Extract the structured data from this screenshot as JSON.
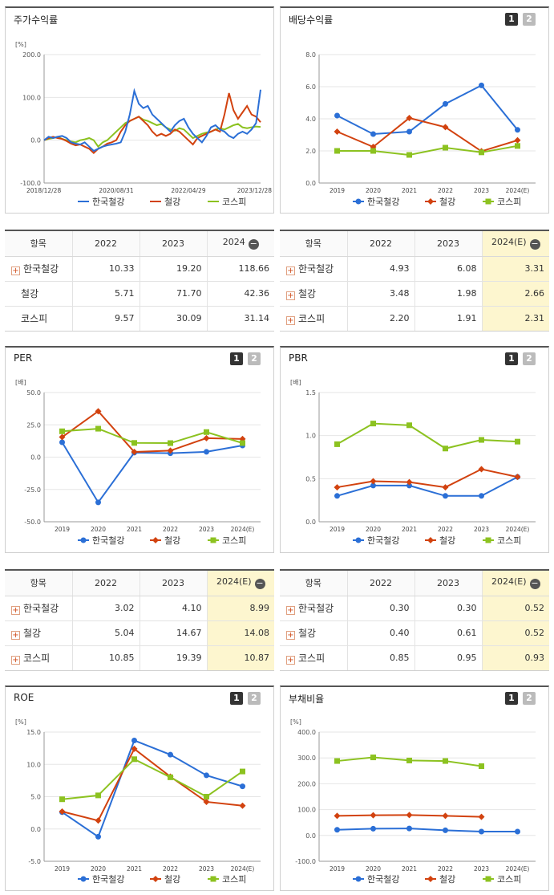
{
  "series_names": [
    "한국철강",
    "철강",
    "코스피"
  ],
  "series_colors": [
    "#2b6fd6",
    "#d2420f",
    "#8cc220"
  ],
  "panels": {
    "stock": {
      "title": "주가수익률",
      "unit": "[%]",
      "chart_data": {
        "type": "line",
        "ylim": [
          -100,
          200
        ],
        "yticks": [
          "200.0",
          "100.0",
          "0.0",
          "-100.0"
        ],
        "xtick_labels": [
          "2018/12/28",
          "2020/08/31",
          "2022/04/29",
          "2023/12/28"
        ],
        "series": [
          {
            "name": "한국철강",
            "values": [
              0,
              8,
              5,
              8,
              10,
              5,
              -5,
              -8,
              -10,
              -5,
              -15,
              -25,
              -20,
              -15,
              -12,
              -10,
              -8,
              -5,
              20,
              60,
              115,
              85,
              75,
              80,
              60,
              50,
              40,
              30,
              20,
              35,
              45,
              50,
              30,
              15,
              5,
              -5,
              10,
              30,
              35,
              25,
              20,
              10,
              5,
              15,
              20,
              15,
              25,
              40,
              118
            ]
          },
          {
            "name": "철강",
            "values": [
              0,
              5,
              8,
              5,
              3,
              -2,
              -8,
              -12,
              -10,
              -15,
              -20,
              -30,
              -20,
              -15,
              -8,
              -5,
              0,
              20,
              35,
              45,
              50,
              55,
              45,
              35,
              20,
              10,
              15,
              10,
              15,
              25,
              20,
              10,
              0,
              -10,
              5,
              10,
              15,
              20,
              25,
              20,
              60,
              110,
              70,
              50,
              65,
              80,
              60,
              55,
              42
            ]
          },
          {
            "name": "코스피",
            "values": [
              0,
              3,
              5,
              8,
              3,
              0,
              -3,
              -5,
              0,
              2,
              5,
              0,
              -15,
              -5,
              0,
              10,
              20,
              30,
              40,
              45,
              50,
              55,
              48,
              45,
              40,
              35,
              38,
              30,
              25,
              22,
              28,
              25,
              15,
              5,
              10,
              15,
              18,
              20,
              25,
              28,
              25,
              30,
              35,
              38,
              30,
              28,
              30,
              32,
              31
            ]
          }
        ]
      }
    },
    "dividend": {
      "title": "배당수익률",
      "chart_data": {
        "type": "line",
        "ylim": [
          0,
          8
        ],
        "yticks": [
          "8.0",
          "6.0",
          "4.0",
          "2.0",
          "0.0"
        ],
        "categories": [
          "2019",
          "2020",
          "2021",
          "2022",
          "2023",
          "2024(E)"
        ],
        "series": [
          {
            "name": "한국철강",
            "values": [
              4.2,
              3.05,
              3.2,
              4.93,
              6.08,
              3.31
            ]
          },
          {
            "name": "철강",
            "values": [
              3.2,
              2.25,
              4.05,
              3.48,
              1.98,
              2.66
            ]
          },
          {
            "name": "코스피",
            "values": [
              2.0,
              2.0,
              1.75,
              2.2,
              1.91,
              2.31
            ]
          }
        ]
      }
    },
    "per": {
      "title": "PER",
      "unit": "[배]",
      "chart_data": {
        "type": "line",
        "ylim": [
          -50,
          50
        ],
        "yticks": [
          "50.0",
          "25.0",
          "0.0",
          "-25.0",
          "-50.0"
        ],
        "categories": [
          "2019",
          "2020",
          "2021",
          "2022",
          "2023",
          "2024(E)"
        ],
        "series": [
          {
            "name": "한국철강",
            "values": [
              11.5,
              -35.0,
              3.5,
              3.02,
              4.1,
              8.99
            ]
          },
          {
            "name": "철강",
            "values": [
              15.5,
              35.5,
              4.0,
              5.04,
              14.67,
              14.08
            ]
          },
          {
            "name": "코스피",
            "values": [
              20.0,
              22.0,
              11.0,
              10.85,
              19.39,
              10.87
            ]
          }
        ]
      }
    },
    "pbr": {
      "title": "PBR",
      "unit": "[배]",
      "chart_data": {
        "type": "line",
        "ylim": [
          0,
          1.5
        ],
        "yticks": [
          "1.5",
          "1.0",
          "0.5",
          "0.0"
        ],
        "categories": [
          "2019",
          "2020",
          "2021",
          "2022",
          "2023",
          "2024(E)"
        ],
        "series": [
          {
            "name": "한국철강",
            "values": [
              0.3,
              0.42,
              0.42,
              0.3,
              0.3,
              0.52
            ]
          },
          {
            "name": "철강",
            "values": [
              0.4,
              0.47,
              0.46,
              0.4,
              0.61,
              0.52
            ]
          },
          {
            "name": "코스피",
            "values": [
              0.9,
              1.14,
              1.12,
              0.85,
              0.95,
              0.93
            ]
          }
        ]
      }
    },
    "roe": {
      "title": "ROE",
      "unit": "[%]",
      "chart_data": {
        "type": "line",
        "ylim": [
          -5,
          15
        ],
        "yticks": [
          "15.0",
          "10.0",
          "5.0",
          "0.0",
          "-5.0"
        ],
        "categories": [
          "2019",
          "2020",
          "2021",
          "2022",
          "2023",
          "2024(E)"
        ],
        "series": [
          {
            "name": "한국철강",
            "values": [
              2.6,
              -1.2,
              13.7,
              11.5,
              8.3,
              6.6
            ]
          },
          {
            "name": "철강",
            "values": [
              2.7,
              1.3,
              12.4,
              8.1,
              4.2,
              3.6
            ]
          },
          {
            "name": "코스피",
            "values": [
              4.6,
              5.2,
              10.8,
              8.0,
              5.0,
              8.9
            ]
          }
        ]
      }
    },
    "debt": {
      "title": "부채비율",
      "unit": "[%]",
      "chart_data": {
        "type": "line",
        "ylim": [
          -100,
          400
        ],
        "yticks": [
          "400.0",
          "300.0",
          "200.0",
          "100.0",
          "0.0",
          "-100.0"
        ],
        "categories": [
          "2019",
          "2020",
          "2021",
          "2022",
          "2023",
          "2024(E)"
        ],
        "series": [
          {
            "name": "한국철강",
            "values": [
              22,
              26,
              27,
              20,
              15,
              15
            ]
          },
          {
            "name": "철강",
            "values": [
              76,
              78,
              79,
              76,
              72,
              null
            ]
          },
          {
            "name": "코스피",
            "values": [
              288,
              302,
              290,
              288,
              268,
              null
            ]
          }
        ]
      }
    }
  },
  "tables": {
    "stock": {
      "header": [
        "항목",
        "2022",
        "2023",
        "2024"
      ],
      "rows": [
        {
          "name": "한국철강",
          "values": [
            "10.33",
            "19.20",
            "118.66"
          ],
          "expand": true
        },
        {
          "name": "철강",
          "values": [
            "5.71",
            "71.70",
            "42.36"
          ],
          "expand": false
        },
        {
          "name": "코스피",
          "values": [
            "9.57",
            "30.09",
            "31.14"
          ],
          "expand": false
        }
      ]
    },
    "dividend": {
      "header": [
        "항목",
        "2022",
        "2023",
        "2024(E)"
      ],
      "rows": [
        {
          "name": "한국철강",
          "values": [
            "4.93",
            "6.08",
            "3.31"
          ]
        },
        {
          "name": "철강",
          "values": [
            "3.48",
            "1.98",
            "2.66"
          ]
        },
        {
          "name": "코스피",
          "values": [
            "2.20",
            "1.91",
            "2.31"
          ]
        }
      ]
    },
    "per": {
      "header": [
        "항목",
        "2022",
        "2023",
        "2024(E)"
      ],
      "rows": [
        {
          "name": "한국철강",
          "values": [
            "3.02",
            "4.10",
            "8.99"
          ]
        },
        {
          "name": "철강",
          "values": [
            "5.04",
            "14.67",
            "14.08"
          ]
        },
        {
          "name": "코스피",
          "values": [
            "10.85",
            "19.39",
            "10.87"
          ]
        }
      ]
    },
    "pbr": {
      "header": [
        "항목",
        "2022",
        "2023",
        "2024(E)"
      ],
      "rows": [
        {
          "name": "한국철강",
          "values": [
            "0.30",
            "0.30",
            "0.52"
          ]
        },
        {
          "name": "철강",
          "values": [
            "0.40",
            "0.61",
            "0.52"
          ]
        },
        {
          "name": "코스피",
          "values": [
            "0.85",
            "0.95",
            "0.93"
          ]
        }
      ]
    }
  },
  "buttons": {
    "one": "1",
    "two": "2"
  },
  "expand_icon": "plus-icon",
  "collapse_icon": "minus-icon"
}
